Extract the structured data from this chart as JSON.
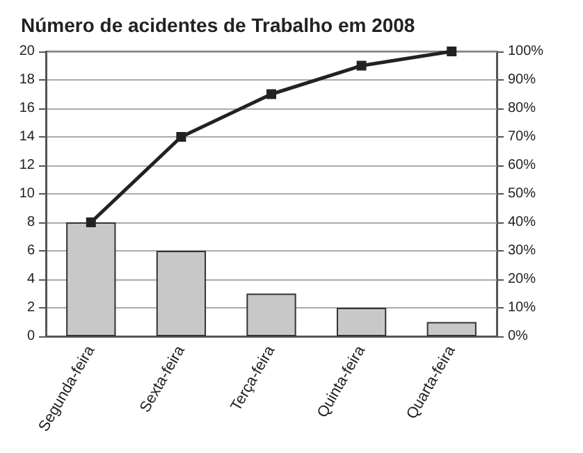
{
  "chart_data": {
    "type": "bar",
    "title": "Número de acidentes de Trabalho em 2008",
    "categories": [
      "Segunda-feira",
      "Sexta-feira",
      "Terça-feira",
      "Quinta-feira",
      "Quarta-feira"
    ],
    "series": [
      {
        "color": "#c8c8c8",
        "values": [
          8,
          6,
          3,
          2,
          1
        ]
      },
      {
        "type": "line",
        "axis": "y2",
        "color": "#222222",
        "values": [
          40,
          70,
          85,
          95,
          100
        ],
        "marker": "square",
        "line_style": "solid"
      }
    ],
    "ylim": [
      0,
      20
    ],
    "yticks": [
      0,
      2,
      4,
      6,
      8,
      10,
      12,
      14,
      16,
      18,
      20
    ],
    "y2lim": [
      0,
      100
    ],
    "y2ticks": [
      {
        "value": 0,
        "label": "0%"
      },
      {
        "value": 10,
        "label": "10%"
      },
      {
        "value": 20,
        "label": "20%"
      },
      {
        "value": 30,
        "label": "30%"
      },
      {
        "value": 40,
        "label": "40%"
      },
      {
        "value": 50,
        "label": "50%"
      },
      {
        "value": 60,
        "label": "60%"
      },
      {
        "value": 70,
        "label": "70%"
      },
      {
        "value": 80,
        "label": "80%"
      },
      {
        "value": 90,
        "label": "90%"
      },
      {
        "value": 100,
        "label": "100%"
      }
    ],
    "grid": "y"
  }
}
